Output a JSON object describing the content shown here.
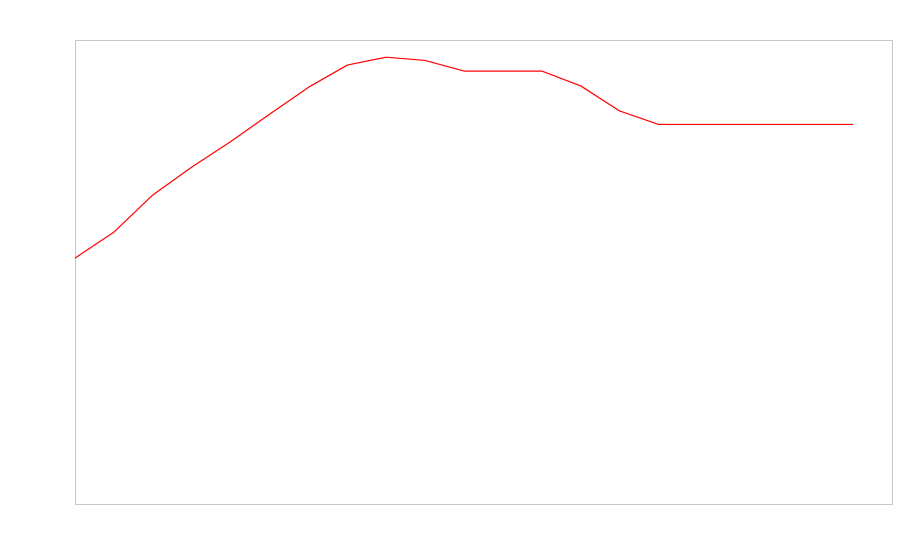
{
  "chart_data": {
    "type": "line",
    "title": "",
    "xlabel": "",
    "ylabel": "",
    "x": [
      0,
      1,
      2,
      3,
      4,
      5,
      6,
      7,
      8,
      9,
      10,
      11,
      12,
      13,
      14,
      15,
      16,
      17,
      18,
      19,
      20
    ],
    "xlim": [
      0,
      21
    ],
    "ylim": [
      0,
      100
    ],
    "grid": false,
    "legend": "none",
    "series": [
      {
        "color": "#ff0000",
        "values": [
          53,
          58.6,
          66.6,
          72.6,
          78.1,
          84,
          89.8,
          94.6,
          96.3,
          95.6,
          93.3,
          93.3,
          93.3,
          90.1,
          84.7,
          81.8,
          81.8,
          81.8,
          81.8,
          81.8,
          81.8
        ]
      }
    ]
  }
}
